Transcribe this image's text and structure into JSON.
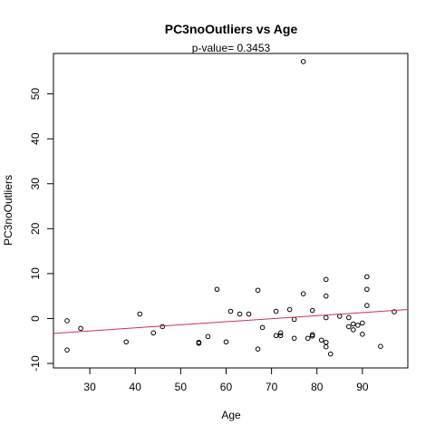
{
  "chart_data": {
    "type": "scatter",
    "title": "PC3noOutliers  vs  Age",
    "subtitle": "p-value= 0.3453",
    "xlabel": "Age",
    "ylabel": "PC3noOutliers",
    "xlim": [
      22,
      100
    ],
    "ylim": [
      -11,
      59
    ],
    "x_ticks": [
      30,
      40,
      50,
      60,
      70,
      80,
      90
    ],
    "y_ticks": [
      -10,
      0,
      10,
      20,
      30,
      40,
      50
    ],
    "grid": false,
    "legend": "none",
    "point_color": "#000000",
    "line_color": "#c8334f",
    "regression_line": {
      "x": [
        22,
        100
      ],
      "y": [
        -3.3,
        2.0
      ]
    },
    "points": [
      {
        "x": 25,
        "y": -0.5
      },
      {
        "x": 25,
        "y": -7.0
      },
      {
        "x": 28,
        "y": -2.2
      },
      {
        "x": 38,
        "y": -5.2
      },
      {
        "x": 41,
        "y": 1.0
      },
      {
        "x": 44,
        "y": -3.2
      },
      {
        "x": 46,
        "y": -1.8
      },
      {
        "x": 54,
        "y": -5.5
      },
      {
        "x": 54,
        "y": -5.3
      },
      {
        "x": 56,
        "y": -4.0
      },
      {
        "x": 58,
        "y": 6.5
      },
      {
        "x": 60,
        "y": -5.2
      },
      {
        "x": 61,
        "y": 1.6
      },
      {
        "x": 63,
        "y": 1.0
      },
      {
        "x": 65,
        "y": 1.0
      },
      {
        "x": 67,
        "y": 6.3
      },
      {
        "x": 67,
        "y": -6.8
      },
      {
        "x": 68,
        "y": -2.0
      },
      {
        "x": 71,
        "y": 1.6
      },
      {
        "x": 71,
        "y": -3.8
      },
      {
        "x": 72,
        "y": -3.2
      },
      {
        "x": 72,
        "y": -3.8
      },
      {
        "x": 74,
        "y": 2.0
      },
      {
        "x": 75,
        "y": -0.2
      },
      {
        "x": 75,
        "y": -4.4
      },
      {
        "x": 77,
        "y": 57.2
      },
      {
        "x": 77,
        "y": 5.5
      },
      {
        "x": 78,
        "y": -4.4
      },
      {
        "x": 79,
        "y": 1.8
      },
      {
        "x": 79,
        "y": -3.6
      },
      {
        "x": 79,
        "y": -3.9
      },
      {
        "x": 81,
        "y": -4.8
      },
      {
        "x": 82,
        "y": 8.7
      },
      {
        "x": 82,
        "y": 5.0
      },
      {
        "x": 82,
        "y": 0.2
      },
      {
        "x": 82,
        "y": -5.3
      },
      {
        "x": 82,
        "y": -6.3
      },
      {
        "x": 83,
        "y": -7.9
      },
      {
        "x": 85,
        "y": 0.5
      },
      {
        "x": 87,
        "y": 0.2
      },
      {
        "x": 87,
        "y": -1.8
      },
      {
        "x": 88,
        "y": -1.2
      },
      {
        "x": 88,
        "y": -2.5
      },
      {
        "x": 89,
        "y": -1.5
      },
      {
        "x": 90,
        "y": -1.0
      },
      {
        "x": 90,
        "y": -3.5
      },
      {
        "x": 91,
        "y": 9.3
      },
      {
        "x": 91,
        "y": 6.5
      },
      {
        "x": 91,
        "y": 2.9
      },
      {
        "x": 94,
        "y": -6.2
      },
      {
        "x": 97,
        "y": 1.5
      }
    ]
  }
}
